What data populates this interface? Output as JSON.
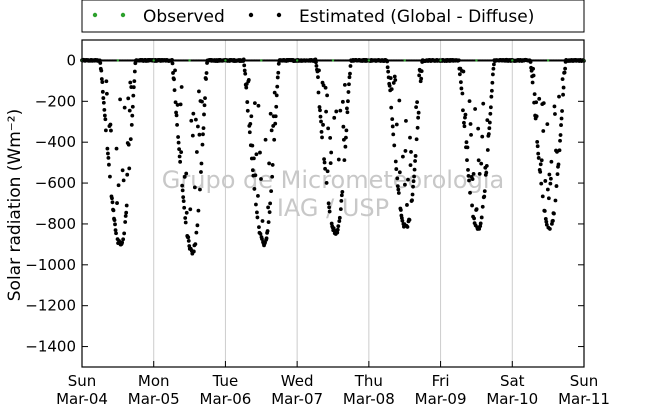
{
  "chart_data": {
    "type": "scatter",
    "title": "",
    "xlabel": "",
    "ylabel": "Solar radiation (Wm⁻²)",
    "ylim": [
      -1500,
      100
    ],
    "yticks": [
      0,
      -200,
      -400,
      -600,
      -800,
      -1000,
      -1200,
      -1400
    ],
    "x_range": [
      "2016-03-04T00:00",
      "2016-03-11T00:00"
    ],
    "xticks": [
      {
        "day": "Sun",
        "date": "Mar-04"
      },
      {
        "day": "Mon",
        "date": "Mar-05"
      },
      {
        "day": "Tue",
        "date": "Mar-06"
      },
      {
        "day": "Wed",
        "date": "Mar-07"
      },
      {
        "day": "Thu",
        "date": "Mar-08"
      },
      {
        "day": "Fri",
        "date": "Mar-09"
      },
      {
        "day": "Sat",
        "date": "Mar-10"
      },
      {
        "day": "Sun",
        "date": "Mar-11"
      }
    ],
    "grid": "vertical",
    "legend_position": "top",
    "watermark": [
      "Grupo de Micrometeorologia",
      "IAG / USP"
    ],
    "series": [
      {
        "name": "Observed",
        "color": "#2ca02c",
        "marker": "dot",
        "description_values": "y = 0 throughout",
        "points": [
          [
            "Mar-04 00:00",
            0
          ],
          [
            "Mar-04 12:00",
            0
          ],
          [
            "Mar-05 00:00",
            0
          ],
          [
            "Mar-05 12:00",
            0
          ],
          [
            "Mar-06 00:00",
            0
          ],
          [
            "Mar-06 12:00",
            0
          ],
          [
            "Mar-07 00:00",
            0
          ],
          [
            "Mar-07 12:00",
            0
          ],
          [
            "Mar-08 00:00",
            0
          ],
          [
            "Mar-08 12:00",
            0
          ],
          [
            "Mar-09 00:00",
            0
          ],
          [
            "Mar-09 12:00",
            0
          ],
          [
            "Mar-10 00:00",
            0
          ],
          [
            "Mar-10 12:00",
            0
          ],
          [
            "Mar-11 00:00",
            0
          ]
        ]
      },
      {
        "name": "Estimated (Global - Diffuse)",
        "color": "#000000",
        "marker": "dot",
        "daily_minima": [
          {
            "day": "Mar-04",
            "hour": 13.0,
            "min": -905
          },
          {
            "day": "Mar-05",
            "hour": 13.0,
            "min": -935
          },
          {
            "day": "Mar-06",
            "hour": 13.0,
            "min": -900
          },
          {
            "day": "Mar-07",
            "hour": 13.0,
            "min": -845
          },
          {
            "day": "Mar-08",
            "hour": 12.5,
            "min": -820
          },
          {
            "day": "Mar-09",
            "hour": 12.5,
            "min": -830
          },
          {
            "day": "Mar-10",
            "hour": 12.5,
            "min": -820
          }
        ],
        "day_hours": [
          6,
          18
        ]
      }
    ]
  },
  "legend": {
    "observed_label": "Observed",
    "estimated_label": "Estimated (Global - Diffuse)"
  },
  "colors": {
    "observed": "#2ca02c",
    "estimated": "#000000",
    "grid": "#cccccc",
    "watermark": "#c8c8c8"
  }
}
